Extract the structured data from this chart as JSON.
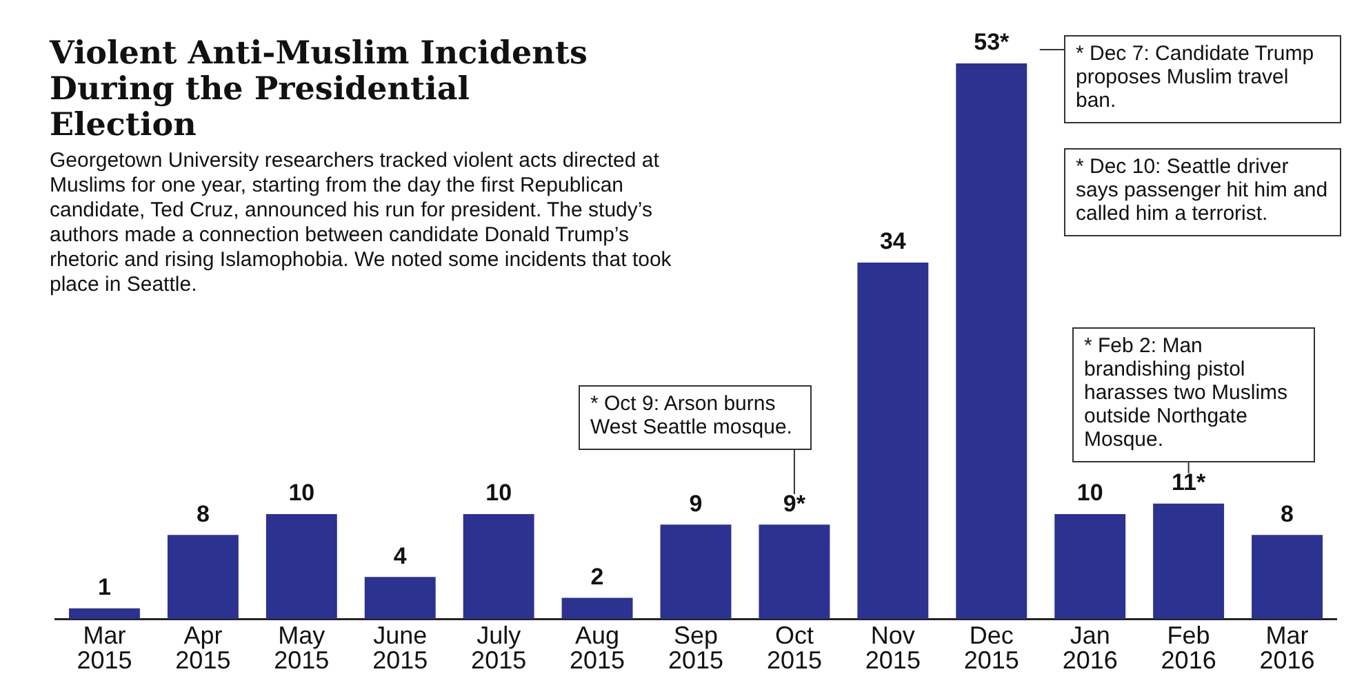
{
  "chart_data": {
    "type": "bar",
    "title": "Violent Anti-Muslim Incidents During the Presidential Election",
    "subtitle": "Georgetown University researchers tracked violent acts directed at Muslims for one year, starting from the day the first Republican candidate, Ted Cruz, announced his run for president. The study’s authors made a connection between candidate Donald Trump’s rhetoric and rising Islamophobia. We noted some incidents that took place in Seattle.",
    "categories": [
      "Mar 2015",
      "Apr 2015",
      "May 2015",
      "June 2015",
      "July 2015",
      "Aug 2015",
      "Sep 2015",
      "Oct 2015",
      "Nov 2015",
      "Dec 2015",
      "Jan 2016",
      "Feb 2016",
      "Mar 2016"
    ],
    "values": [
      1,
      8,
      10,
      4,
      10,
      2,
      9,
      9,
      34,
      53,
      10,
      11,
      8
    ],
    "value_labels": [
      "1",
      "8",
      "10",
      "4",
      "10",
      "2",
      "9",
      "9*",
      "34",
      "53*",
      "10",
      "11*",
      "8"
    ],
    "color": "#2b3290",
    "grid": false,
    "legend": false,
    "annotations": [
      "* Oct 9: Arson burns West Seattle mosque.",
      "* Dec 7: Candidate Trump proposes Muslim travel ban.",
      "* Dec 10: Seattle driver says passenger hit him and called him a terrorist.",
      "* Feb 2: Man brandishing pistol harasses two Muslims outside Northgate Mosque."
    ]
  }
}
